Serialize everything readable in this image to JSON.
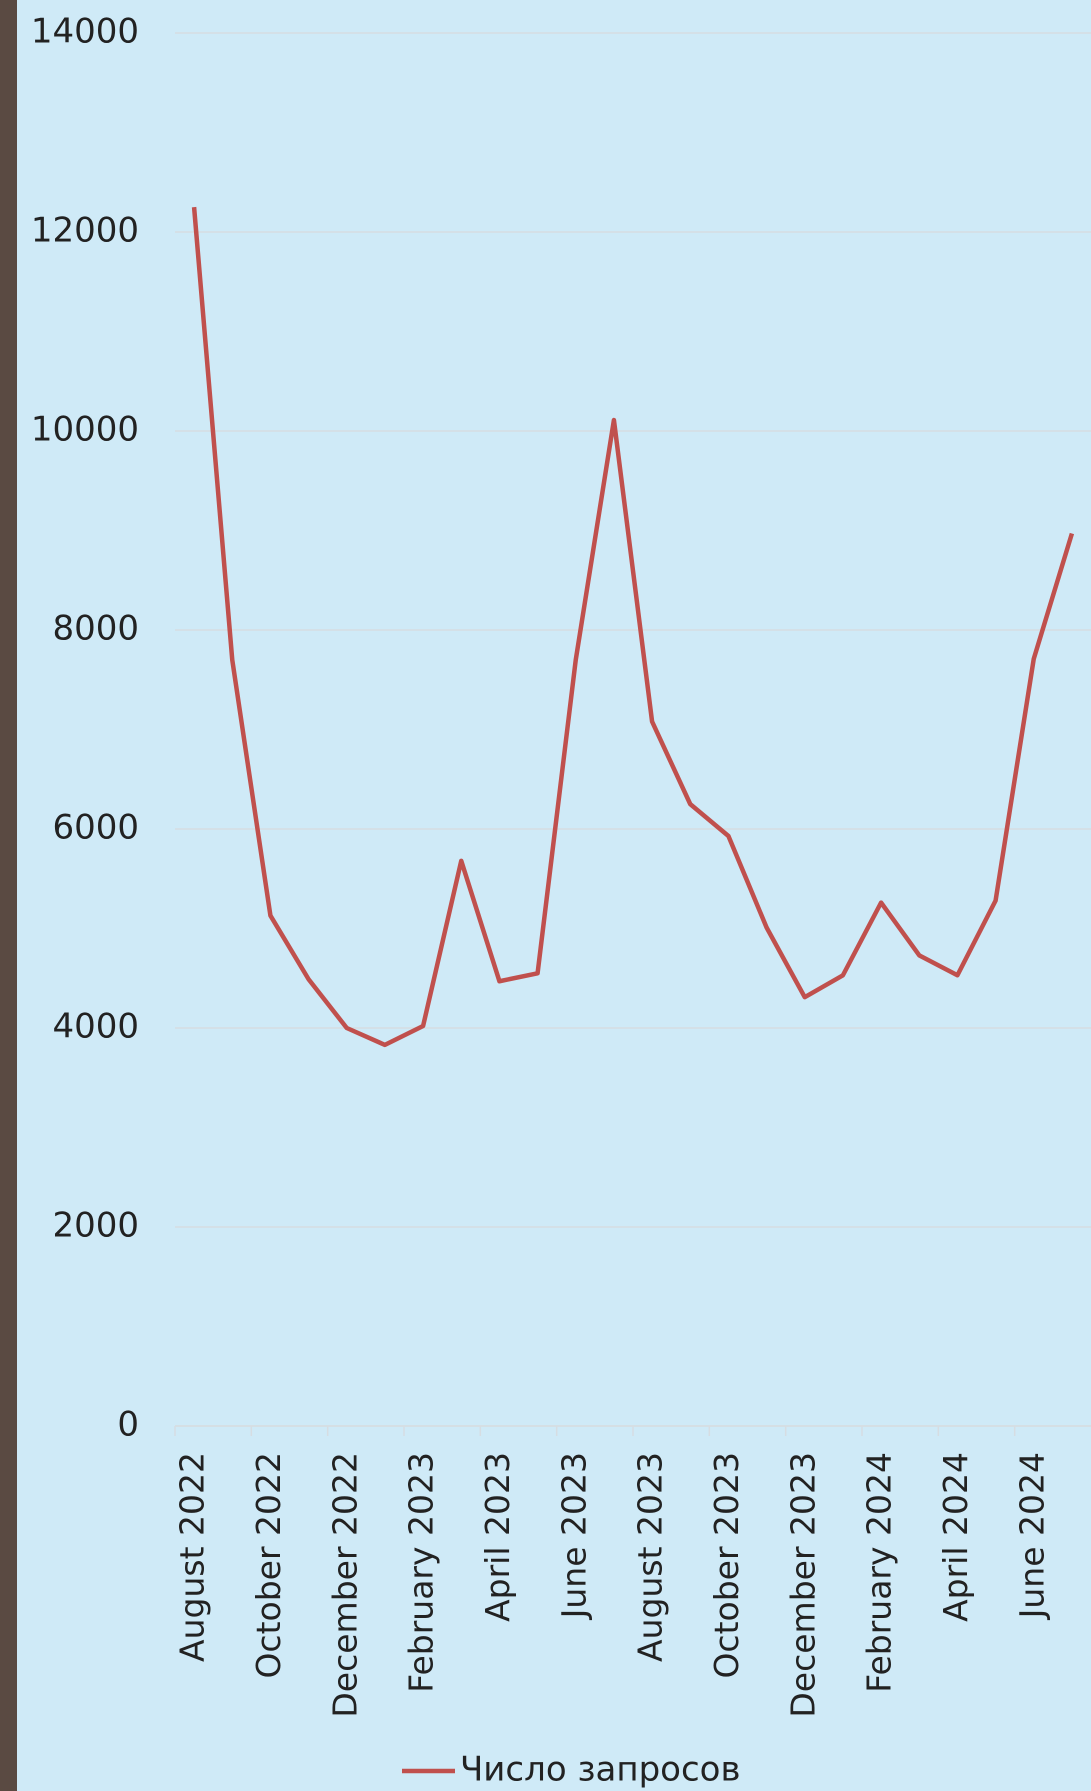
{
  "chart_data": {
    "type": "line",
    "categories": [
      "August 2022",
      null,
      "October 2022",
      null,
      "December 2022",
      null,
      "February 2023",
      null,
      "April 2023",
      null,
      "June 2023",
      null,
      "August 2023",
      null,
      "October 2023",
      null,
      "December 2023",
      null,
      "February 2024",
      null,
      "April 2024",
      null,
      "June 2024",
      null
    ],
    "series": [
      {
        "name": "Число запросов",
        "color": "#c0504d",
        "values": [
          12250,
          7700,
          5130,
          4490,
          4000,
          3830,
          4020,
          5680,
          4470,
          4550,
          7700,
          10110,
          7080,
          6250,
          5930,
          5010,
          4310,
          4530,
          5260,
          4730,
          4530,
          5280,
          7710,
          8970
        ]
      }
    ],
    "ylim": [
      0,
      14000
    ],
    "yticks": [
      0,
      2000,
      4000,
      6000,
      8000,
      10000,
      12000,
      14000
    ],
    "grid": true,
    "legend": "bottom"
  }
}
